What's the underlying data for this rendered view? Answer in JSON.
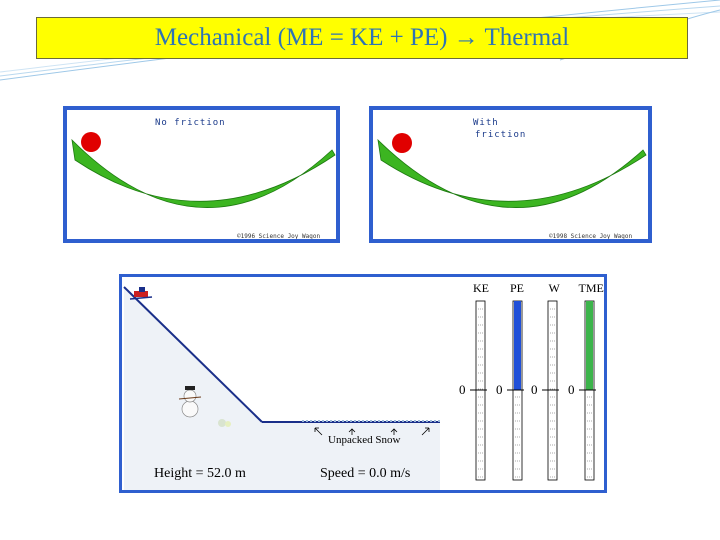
{
  "slide": {
    "title": "Mechanical (ME = KE + PE) → Thermal"
  },
  "panels": [
    {
      "label": "No friction",
      "copyright": "©1996 Science Joy Wagon"
    },
    {
      "label_line1": "With",
      "label_line2": "friction",
      "copyright": "©1998 Science Joy Wagon"
    }
  ],
  "simulation": {
    "bars": [
      {
        "label": "KE",
        "zero": "0",
        "fill": 0.0,
        "color": "#ffffff"
      },
      {
        "label": "PE",
        "zero": "0",
        "fill": 1.0,
        "color": "#1f4fd8"
      },
      {
        "label": "W",
        "zero": "0",
        "fill": 0.0,
        "color": "#ffffff"
      },
      {
        "label": "TME",
        "zero": "0",
        "fill": 1.0,
        "color": "#3cb44b"
      }
    ],
    "snow_label": "Unpacked Snow",
    "height_readout": "Height = 52.0 m",
    "speed_readout": "Speed =  0.0  m/s"
  },
  "colors": {
    "title_bg": "#ffff00",
    "title_text": "#2e74b5",
    "frame_blue": "#2f5fcf",
    "track_green": "#3cb521",
    "ball_red": "#e00000"
  }
}
